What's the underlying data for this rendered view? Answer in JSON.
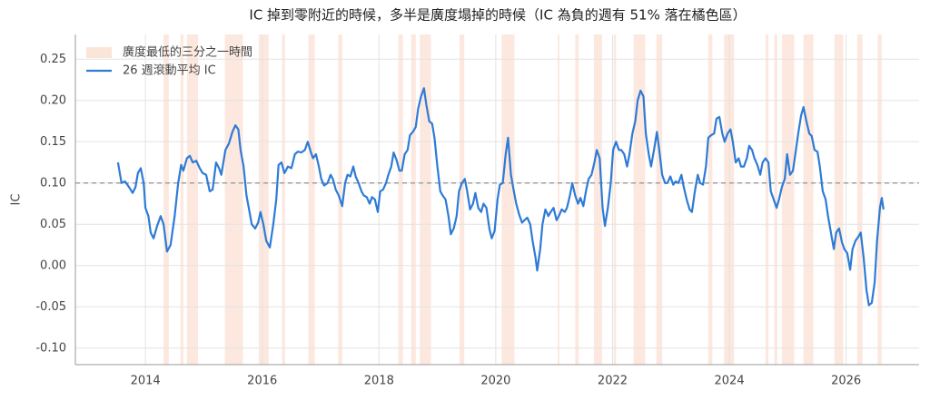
{
  "chart_data": {
    "type": "line",
    "title": "IC 掉到零附近的時候，多半是廣度塌掉的時候（IC 為負的週有 51% 落在橘色區）",
    "y_label": "IC",
    "xlim": [
      2012.8,
      2027.25
    ],
    "xticks": [
      2014,
      2016,
      2018,
      2020,
      2022,
      2024,
      2026
    ],
    "ylim": [
      -0.12,
      0.28
    ],
    "yticks": [
      {
        "value": -0.1,
        "label": "-0.10"
      },
      -0.05,
      {
        "value": 0,
        "label": "0.00"
      },
      0.05,
      {
        "value": 0.1,
        "label": "0.10"
      },
      0.15,
      {
        "value": 0.2,
        "label": "0.20"
      },
      0.25
    ],
    "grid": true,
    "legend": "upper-left",
    "hline": {
      "value": 0.1,
      "color": "#888888"
    },
    "spans": {
      "name": "廣度最低的三分之一時間",
      "color": "#fbe4d8",
      "ranges": [
        [
          2014.31,
          2014.4
        ],
        [
          2014.6,
          2014.65
        ],
        [
          2014.71,
          2014.9
        ],
        [
          2015.36,
          2015.67
        ],
        [
          2015.94,
          2016.11
        ],
        [
          2016.34,
          2016.39
        ],
        [
          2016.79,
          2016.9
        ],
        [
          2017.3,
          2017.37
        ],
        [
          2018.33,
          2018.41
        ],
        [
          2018.55,
          2018.63
        ],
        [
          2018.7,
          2018.89
        ],
        [
          2019.38,
          2019.46
        ],
        [
          2020.1,
          2020.32
        ],
        [
          2021.06,
          2021.09
        ],
        [
          2021.36,
          2021.42
        ],
        [
          2021.68,
          2021.82
        ],
        [
          2022.02,
          2022.06
        ],
        [
          2022.36,
          2022.56
        ],
        [
          2022.75,
          2022.85
        ],
        [
          2023.64,
          2023.71
        ],
        [
          2023.91,
          2024.08
        ],
        [
          2024.62,
          2024.67
        ],
        [
          2024.77,
          2024.82
        ],
        [
          2024.9,
          2025.11
        ],
        [
          2025.27,
          2025.44
        ],
        [
          2025.8,
          2025.95
        ],
        [
          2026.19,
          2026.28
        ],
        [
          2026.54,
          2026.61
        ]
      ]
    },
    "x": [
      2013.53,
      2013.59,
      2013.65,
      2013.72,
      2013.78,
      2013.83,
      2013.87,
      2013.92,
      2013.97,
      2014.0,
      2014.05,
      2014.09,
      2014.14,
      2014.2,
      2014.26,
      2014.31,
      2014.37,
      2014.43,
      2014.5,
      2014.56,
      2014.61,
      2014.65,
      2014.71,
      2014.76,
      2014.81,
      2014.87,
      2014.93,
      2014.98,
      2015.04,
      2015.1,
      2015.15,
      2015.21,
      2015.26,
      2015.3,
      2015.37,
      2015.43,
      2015.49,
      2015.54,
      2015.59,
      2015.63,
      2015.68,
      2015.73,
      2015.77,
      2015.82,
      2015.88,
      2015.93,
      2015.97,
      2016.02,
      2016.07,
      2016.13,
      2016.19,
      2016.24,
      2016.28,
      2016.33,
      2016.38,
      2016.44,
      2016.5,
      2016.56,
      2016.61,
      2016.67,
      2016.73,
      2016.78,
      2016.83,
      2016.87,
      2016.92,
      2016.97,
      2017.01,
      2017.06,
      2017.12,
      2017.17,
      2017.21,
      2017.26,
      2017.31,
      2017.37,
      2017.42,
      2017.46,
      2017.51,
      2017.56,
      2017.6,
      2017.65,
      2017.7,
      2017.74,
      2017.79,
      2017.84,
      2017.88,
      2017.93,
      2017.98,
      2018.02,
      2018.07,
      2018.12,
      2018.16,
      2018.21,
      2018.25,
      2018.3,
      2018.35,
      2018.39,
      2018.44,
      2018.49,
      2018.53,
      2018.58,
      2018.63,
      2018.67,
      2018.72,
      2018.77,
      2018.81,
      2018.86,
      2018.91,
      2018.95,
      2019.0,
      2019.05,
      2019.09,
      2019.14,
      2019.19,
      2019.23,
      2019.28,
      2019.33,
      2019.37,
      2019.42,
      2019.47,
      2019.51,
      2019.56,
      2019.61,
      2019.65,
      2019.7,
      2019.75,
      2019.79,
      2019.84,
      2019.89,
      2019.93,
      2019.98,
      2020.03,
      2020.07,
      2020.12,
      2020.17,
      2020.21,
      2020.26,
      2020.31,
      2020.35,
      2020.4,
      2020.45,
      2020.49,
      2020.54,
      2020.59,
      2020.63,
      2020.68,
      2020.71,
      2020.76,
      2020.8,
      2020.85,
      2020.9,
      2020.94,
      2020.99,
      2021.04,
      2021.08,
      2021.13,
      2021.18,
      2021.22,
      2021.27,
      2021.31,
      2021.36,
      2021.41,
      2021.45,
      2021.5,
      2021.55,
      2021.59,
      2021.64,
      2021.69,
      2021.73,
      2021.78,
      2021.83,
      2021.87,
      2021.92,
      2021.97,
      2022.01,
      2022.06,
      2022.11,
      2022.15,
      2022.2,
      2022.25,
      2022.29,
      2022.34,
      2022.39,
      2022.43,
      2022.48,
      2022.53,
      2022.57,
      2022.62,
      2022.66,
      2022.71,
      2022.76,
      2022.8,
      2022.85,
      2022.9,
      2022.94,
      2022.99,
      2023.04,
      2023.08,
      2023.13,
      2023.18,
      2023.22,
      2023.27,
      2023.32,
      2023.36,
      2023.41,
      2023.46,
      2023.5,
      2023.55,
      2023.6,
      2023.64,
      2023.69,
      2023.74,
      2023.78,
      2023.83,
      2023.88,
      2023.92,
      2023.97,
      2024.02,
      2024.06,
      2024.11,
      2024.16,
      2024.2,
      2024.25,
      2024.3,
      2024.34,
      2024.39,
      2024.43,
      2024.48,
      2024.53,
      2024.57,
      2024.62,
      2024.67,
      2024.71,
      2024.76,
      2024.81,
      2024.85,
      2024.9,
      2024.95,
      2024.99,
      2025.04,
      2025.09,
      2025.13,
      2025.18,
      2025.23,
      2025.27,
      2025.32,
      2025.37,
      2025.41,
      2025.46,
      2025.51,
      2025.55,
      2025.6,
      2025.65,
      2025.69,
      2025.74,
      2025.79,
      2025.83,
      2025.88,
      2025.93,
      2025.97,
      2026.02,
      2026.07,
      2026.11,
      2026.16,
      2026.21,
      2026.25,
      2026.3,
      2026.35,
      2026.39,
      2026.44,
      2026.49,
      2026.53,
      2026.58,
      2026.61,
      2026.64
    ],
    "series": [
      {
        "name": "26 週滾動平均 IC",
        "color": "#2e7bd6",
        "values": [
          0.125,
          0.1,
          0.102,
          0.095,
          0.088,
          0.095,
          0.112,
          0.118,
          0.1,
          0.07,
          0.06,
          0.04,
          0.033,
          0.048,
          0.06,
          0.05,
          0.017,
          0.025,
          0.06,
          0.1,
          0.122,
          0.115,
          0.13,
          0.133,
          0.125,
          0.127,
          0.118,
          0.112,
          0.11,
          0.09,
          0.092,
          0.125,
          0.118,
          0.11,
          0.14,
          0.148,
          0.162,
          0.17,
          0.165,
          0.14,
          0.12,
          0.085,
          0.07,
          0.05,
          0.045,
          0.052,
          0.065,
          0.05,
          0.03,
          0.022,
          0.05,
          0.08,
          0.122,
          0.125,
          0.112,
          0.12,
          0.118,
          0.135,
          0.138,
          0.137,
          0.14,
          0.15,
          0.138,
          0.13,
          0.135,
          0.12,
          0.105,
          0.097,
          0.1,
          0.11,
          0.105,
          0.092,
          0.085,
          0.072,
          0.1,
          0.11,
          0.108,
          0.12,
          0.108,
          0.1,
          0.09,
          0.085,
          0.083,
          0.075,
          0.083,
          0.08,
          0.065,
          0.09,
          0.092,
          0.1,
          0.11,
          0.12,
          0.137,
          0.128,
          0.115,
          0.115,
          0.135,
          0.14,
          0.158,
          0.162,
          0.168,
          0.19,
          0.205,
          0.215,
          0.195,
          0.175,
          0.172,
          0.155,
          0.12,
          0.09,
          0.085,
          0.08,
          0.06,
          0.038,
          0.045,
          0.06,
          0.09,
          0.1,
          0.105,
          0.09,
          0.068,
          0.075,
          0.088,
          0.07,
          0.065,
          0.075,
          0.07,
          0.045,
          0.033,
          0.042,
          0.08,
          0.098,
          0.1,
          0.135,
          0.155,
          0.11,
          0.09,
          0.075,
          0.062,
          0.052,
          0.055,
          0.058,
          0.05,
          0.03,
          0.01,
          -0.006,
          0.02,
          0.05,
          0.068,
          0.06,
          0.065,
          0.07,
          0.055,
          0.06,
          0.068,
          0.065,
          0.07,
          0.085,
          0.1,
          0.085,
          0.075,
          0.082,
          0.072,
          0.092,
          0.105,
          0.11,
          0.125,
          0.14,
          0.13,
          0.07,
          0.048,
          0.07,
          0.1,
          0.14,
          0.15,
          0.14,
          0.14,
          0.135,
          0.12,
          0.135,
          0.16,
          0.175,
          0.2,
          0.212,
          0.205,
          0.16,
          0.135,
          0.12,
          0.14,
          0.162,
          0.14,
          0.11,
          0.1,
          0.1,
          0.108,
          0.098,
          0.102,
          0.1,
          0.11,
          0.095,
          0.08,
          0.068,
          0.065,
          0.09,
          0.11,
          0.1,
          0.098,
          0.12,
          0.155,
          0.158,
          0.16,
          0.178,
          0.18,
          0.16,
          0.15,
          0.16,
          0.165,
          0.15,
          0.125,
          0.13,
          0.12,
          0.12,
          0.13,
          0.145,
          0.14,
          0.13,
          0.122,
          0.11,
          0.125,
          0.13,
          0.125,
          0.09,
          0.08,
          0.07,
          0.08,
          0.095,
          0.105,
          0.135,
          0.11,
          0.115,
          0.135,
          0.16,
          0.182,
          0.192,
          0.175,
          0.16,
          0.157,
          0.14,
          0.138,
          0.12,
          0.09,
          0.08,
          0.06,
          0.04,
          0.02,
          0.04,
          0.045,
          0.028,
          0.02,
          0.015,
          -0.005,
          0.02,
          0.03,
          0.035,
          0.04,
          0.01,
          -0.03,
          -0.048,
          -0.045,
          -0.02,
          0.03,
          0.07,
          0.082,
          0.068
        ]
      }
    ]
  }
}
